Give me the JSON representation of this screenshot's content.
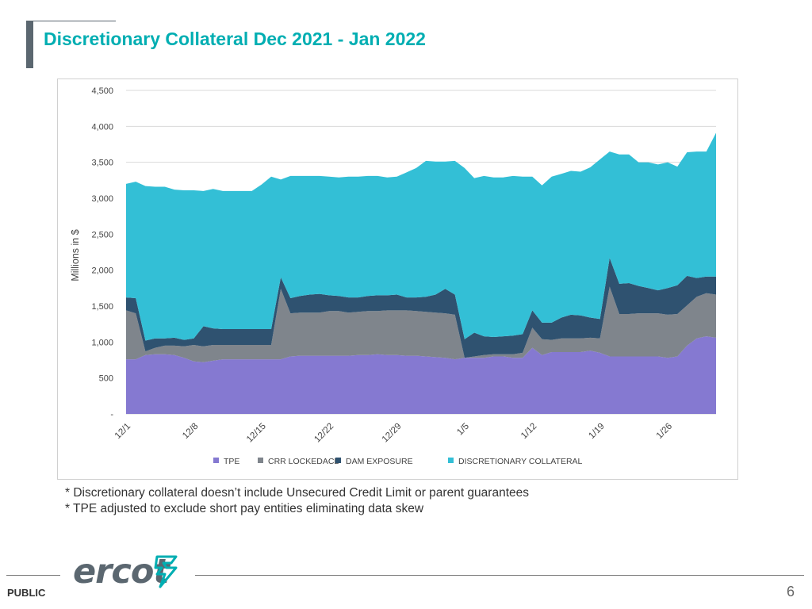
{
  "page": {
    "title": "Discretionary Collateral Dec 2021 - Jan 2022",
    "notes": [
      "* Discretionary collateral doesn’t include Unsecured Credit Limit or parent guarantees",
      "* TPE adjusted to exclude short pay entities eliminating data skew"
    ],
    "footer_label": "PUBLIC",
    "page_number": "6",
    "logo_text": "ercot"
  },
  "colors": {
    "title": "#00aeb2",
    "tpe": "#8579d1",
    "crr": "#7f858c",
    "dam": "#2f5270",
    "disc": "#33bfd6"
  },
  "chart_data": {
    "type": "area",
    "stacked": true,
    "ylabel": "Millions in $",
    "ylim": [
      0,
      4500
    ],
    "yticks": [
      0,
      500,
      1000,
      1500,
      2000,
      2500,
      3000,
      3500,
      4000,
      4500
    ],
    "ytick_labels": [
      "-",
      "500",
      "1,000",
      "1,500",
      "2,000",
      "2,500",
      "3,000",
      "3,500",
      "4,000",
      "4,500"
    ],
    "xtick_labels": [
      "12/1",
      "12/8",
      "12/15",
      "12/22",
      "12/29",
      "1/5",
      "1/12",
      "1/19",
      "1/26"
    ],
    "xtick_index": [
      0,
      7,
      14,
      21,
      28,
      35,
      42,
      49,
      56
    ],
    "grid": true,
    "legend_position": "bottom",
    "x": [
      "12/1",
      "12/2",
      "12/3",
      "12/4",
      "12/5",
      "12/6",
      "12/7",
      "12/8",
      "12/9",
      "12/10",
      "12/11",
      "12/12",
      "12/13",
      "12/14",
      "12/15",
      "12/16",
      "12/17",
      "12/18",
      "12/19",
      "12/20",
      "12/21",
      "12/22",
      "12/23",
      "12/24",
      "12/25",
      "12/26",
      "12/27",
      "12/28",
      "12/29",
      "12/30",
      "12/31",
      "1/1",
      "1/2",
      "1/3",
      "1/4",
      "1/5",
      "1/6",
      "1/7",
      "1/8",
      "1/9",
      "1/10",
      "1/11",
      "1/12",
      "1/13",
      "1/14",
      "1/15",
      "1/16",
      "1/17",
      "1/18",
      "1/19",
      "1/20",
      "1/21",
      "1/22",
      "1/23",
      "1/24",
      "1/25",
      "1/26",
      "1/27",
      "1/28",
      "1/29",
      "1/30",
      "1/31"
    ],
    "series": [
      {
        "name": "TPE",
        "color_key": "tpe",
        "values": [
          760,
          760,
          820,
          830,
          830,
          820,
          780,
          730,
          720,
          740,
          760,
          760,
          760,
          760,
          760,
          760,
          760,
          800,
          810,
          810,
          810,
          810,
          810,
          810,
          820,
          820,
          830,
          820,
          820,
          810,
          810,
          800,
          790,
          780,
          760,
          780,
          780,
          780,
          800,
          800,
          780,
          780,
          920,
          820,
          860,
          860,
          860,
          860,
          880,
          850,
          800,
          800,
          800,
          800,
          800,
          800,
          780,
          800,
          950,
          1050,
          1080,
          1060
        ]
      },
      {
        "name": "CRR LOCKEDACL",
        "color_key": "crr",
        "values": [
          680,
          640,
          50,
          90,
          120,
          130,
          160,
          230,
          220,
          220,
          200,
          200,
          200,
          200,
          200,
          200,
          980,
          600,
          600,
          600,
          600,
          620,
          620,
          600,
          600,
          610,
          600,
          620,
          620,
          630,
          620,
          620,
          620,
          620,
          620,
          0,
          20,
          40,
          30,
          30,
          50,
          70,
          280,
          220,
          170,
          190,
          190,
          190,
          180,
          200,
          970,
          590,
          590,
          600,
          600,
          600,
          600,
          590,
          560,
          580,
          600,
          600
        ]
      },
      {
        "name": "DAM EXPOSURE",
        "color_key": "dam",
        "values": [
          180,
          210,
          150,
          130,
          100,
          110,
          90,
          90,
          280,
          230,
          220,
          220,
          220,
          220,
          220,
          220,
          160,
          210,
          230,
          250,
          260,
          220,
          210,
          210,
          200,
          210,
          220,
          210,
          220,
          180,
          190,
          210,
          250,
          340,
          280,
          260,
          330,
          260,
          240,
          250,
          260,
          260,
          240,
          230,
          240,
          290,
          330,
          320,
          280,
          270,
          400,
          420,
          430,
          380,
          350,
          320,
          370,
          400,
          410,
          260,
          230,
          250
        ]
      },
      {
        "name": "DISCRETIONARY COLLATERAL",
        "color_key": "disc",
        "values": [
          1580,
          1620,
          2150,
          2110,
          2110,
          2060,
          2080,
          2060,
          1880,
          1940,
          1920,
          1920,
          1920,
          1920,
          2010,
          2120,
          1360,
          1700,
          1670,
          1650,
          1640,
          1650,
          1650,
          1680,
          1680,
          1670,
          1660,
          1640,
          1640,
          1740,
          1800,
          1890,
          1850,
          1770,
          1860,
          2380,
          2150,
          2230,
          2220,
          2210,
          2220,
          2190,
          1860,
          1910,
          2030,
          2000,
          2000,
          2000,
          2090,
          2220,
          1480,
          1800,
          1790,
          1720,
          1750,
          1750,
          1750,
          1650,
          1720,
          1760,
          1740,
          2000
        ]
      }
    ]
  }
}
